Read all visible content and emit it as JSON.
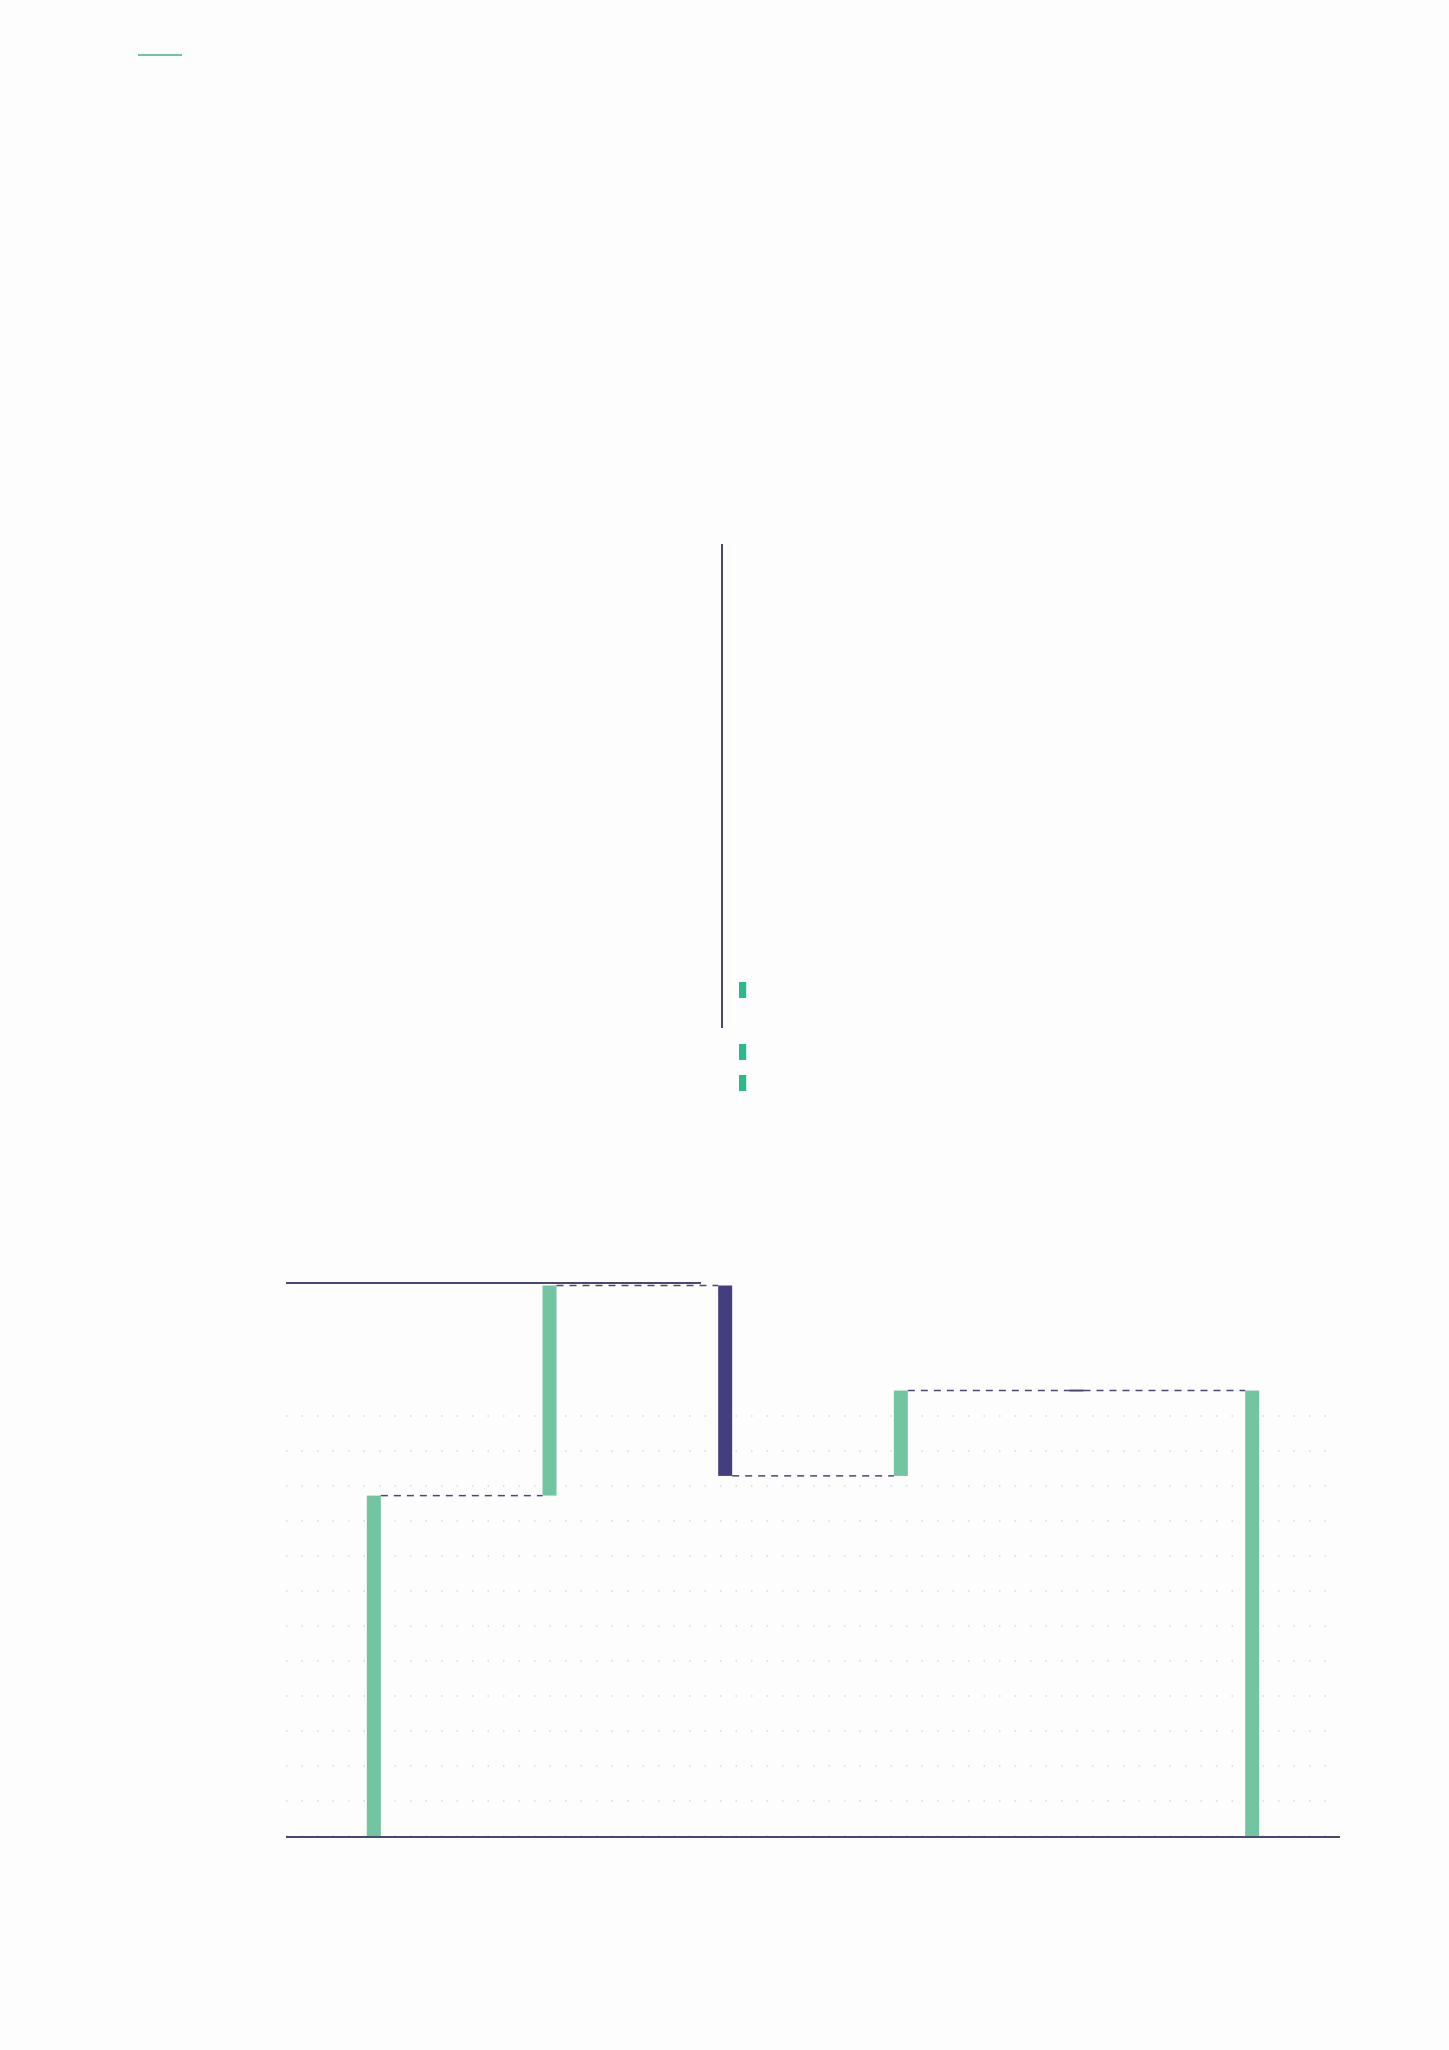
{
  "colors": {
    "background": "#fdfdfd",
    "accent": "#6cc4a0",
    "increase": "#72c5a1",
    "decrease": "#433f7e",
    "small_marker": "#2bb98a",
    "axis": "#4a4870",
    "connector": "#4a4870",
    "grid_dots": "#d8d8d8"
  },
  "chart_data": [
    {
      "type": "bar",
      "orientation": "horizontal",
      "title": "",
      "xlabel": "",
      "ylabel": "",
      "categories": [
        "",
        "",
        "",
        "",
        "",
        "",
        "",
        ""
      ],
      "values": [
        0,
        0,
        0,
        0,
        0.6,
        0,
        0.6,
        0.6
      ],
      "grid": false,
      "legend": "none"
    },
    {
      "type": "bar",
      "subtype": "waterfall",
      "title": "",
      "xlabel": "",
      "ylabel": "",
      "categories": [
        "",
        "",
        "",
        "",
        "",
        ""
      ],
      "steps": [
        {
          "kind": "total",
          "value": 7.8
        },
        {
          "kind": "delta",
          "value": 4.8
        },
        {
          "kind": "delta",
          "value": -4.35
        },
        {
          "kind": "delta",
          "value": 1.95
        },
        {
          "kind": "delta",
          "value": 0
        },
        {
          "kind": "total",
          "value": 10.2
        }
      ],
      "ylim": [
        0,
        13
      ],
      "grid": true,
      "grid_style": "dotted",
      "legend": "none"
    }
  ]
}
